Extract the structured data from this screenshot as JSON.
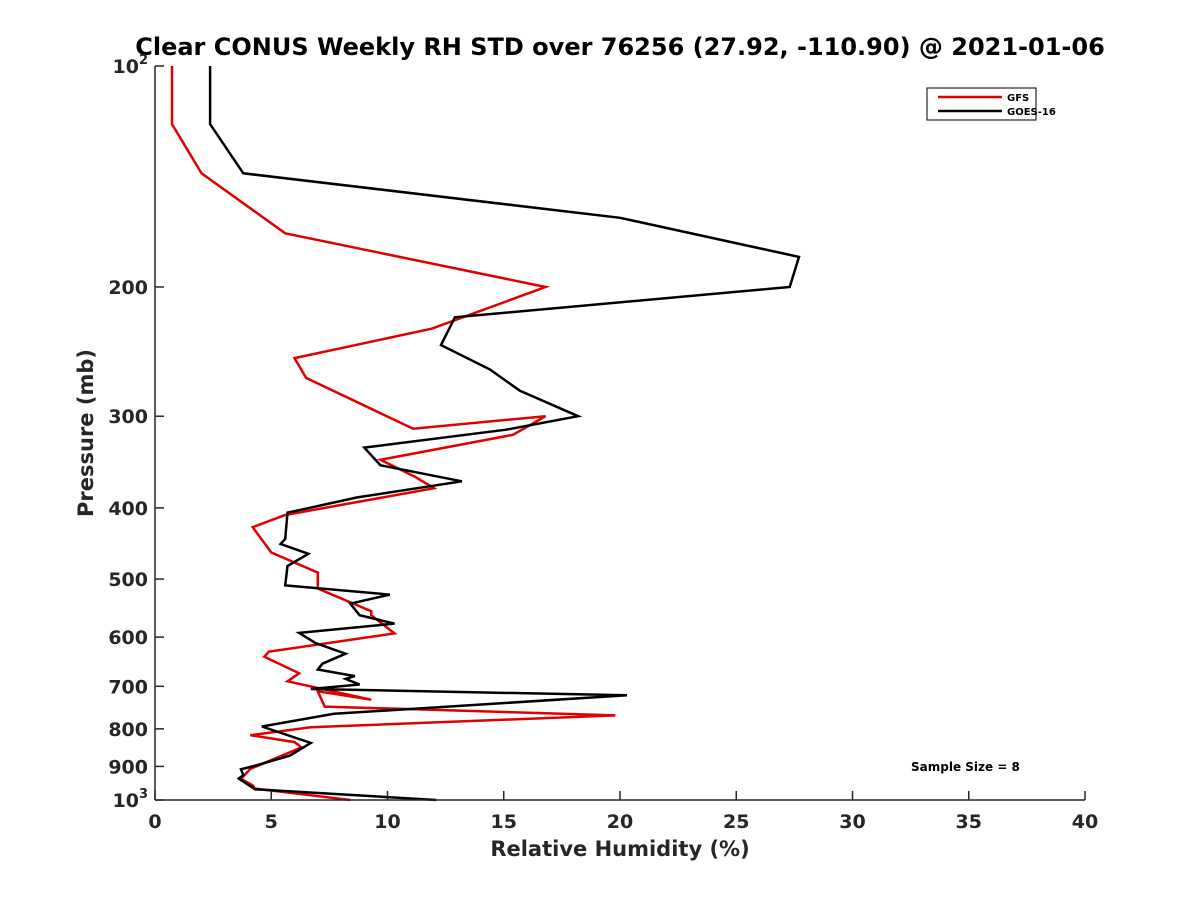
{
  "chart_data": {
    "type": "line",
    "title": "Clear CONUS Weekly RH STD over 76256 (27.92, -110.90) @ 2021-01-06",
    "xlabel": "Relative Humidity (%)",
    "ylabel": "Pressure (mb)",
    "xlim": [
      0,
      40
    ],
    "ylim": [
      100,
      1000
    ],
    "yscale": "log",
    "yreversed": true,
    "grid": false,
    "legend_position": "top-right",
    "xticks": [
      0,
      5,
      10,
      15,
      20,
      25,
      30,
      35,
      40
    ],
    "xtick_labels": [
      "0",
      "5",
      "10",
      "15",
      "20",
      "25",
      "30",
      "35",
      "40"
    ],
    "yticks": [
      {
        "value": 100,
        "base": "10",
        "exp": "2"
      },
      {
        "value": 200,
        "label": "200"
      },
      {
        "value": 300,
        "label": "300"
      },
      {
        "value": 400,
        "label": "400"
      },
      {
        "value": 500,
        "label": "500"
      },
      {
        "value": 600,
        "label": "600"
      },
      {
        "value": 700,
        "label": "700"
      },
      {
        "value": 800,
        "label": "800"
      },
      {
        "value": 900,
        "label": "900"
      },
      {
        "value": 1000,
        "base": "10",
        "exp": "3"
      }
    ],
    "annotation": "Sample Size = 8",
    "series": [
      {
        "name": "GFS",
        "color": "#e00000",
        "x": [
          0.73,
          0.73,
          2.0,
          5.6,
          16.8,
          11.9,
          6.0,
          6.5,
          11.1,
          16.8,
          15.4,
          9.7,
          11.2,
          12.0,
          5.6,
          4.2,
          5.0,
          7.0,
          7.0,
          9.3,
          9.3,
          10.3,
          4.9,
          4.7,
          6.2,
          5.7,
          9.3,
          7.0,
          7.3,
          19.8,
          6.7,
          4.1,
          6.0,
          6.3,
          4.1,
          3.7,
          4.2,
          4.3,
          8.4
        ],
        "y": [
          100,
          120,
          140,
          169,
          200,
          228,
          250,
          266,
          312,
          300,
          318,
          344,
          363,
          376,
          409,
          425,
          460,
          490,
          515,
          553,
          560,
          593,
          628,
          638,
          672,
          689,
          730,
          711,
          746,
          767,
          796,
          816,
          834,
          848,
          907,
          936,
          955,
          965,
          1000
        ]
      },
      {
        "name": "GOES-16",
        "color": "#000000",
        "x": [
          2.37,
          2.37,
          3.8,
          20.0,
          27.7,
          27.3,
          12.9,
          12.3,
          14.4,
          15.7,
          18.2,
          15.1,
          9.0,
          9.7,
          13.2,
          8.7,
          5.7,
          5.6,
          5.4,
          6.6,
          5.7,
          5.6,
          10.1,
          8.4,
          8.8,
          10.3,
          6.2,
          6.9,
          8.2,
          7.2,
          7.0,
          8.6,
          8.2,
          8.8,
          6.7,
          20.3,
          7.7,
          4.6,
          6.7,
          5.8,
          4.2,
          3.7,
          3.8,
          3.6,
          4.3,
          12.1
        ],
        "y": [
          100,
          120,
          140,
          161,
          182,
          200,
          220,
          240,
          259,
          277,
          300,
          313,
          331,
          350,
          368,
          387,
          406,
          441,
          448,
          462,
          480,
          510,
          525,
          540,
          560,
          575,
          592,
          611,
          632,
          652,
          664,
          678,
          684,
          696,
          706,
          720,
          763,
          794,
          836,
          870,
          900,
          908,
          925,
          935,
          967,
          1000
        ]
      }
    ]
  }
}
